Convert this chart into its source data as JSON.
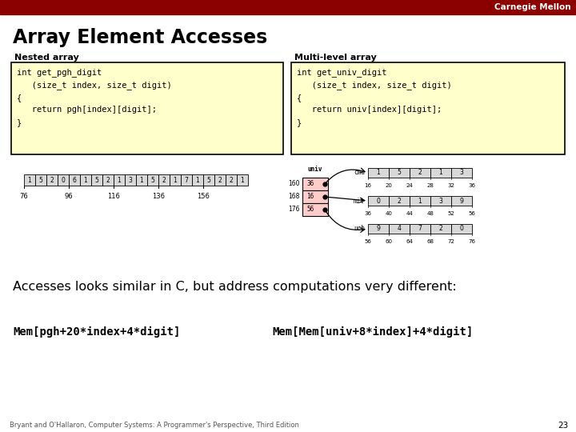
{
  "title": "Array Element Accesses",
  "bg_color": "#ffffff",
  "header_bar_color": "#8b0000",
  "header_text": "Carnegie Mellon",
  "header_text_color": "#ffffff",
  "slide_title_color": "#000000",
  "nested_label": "Nested array",
  "multilevel_label": "Multi-level array",
  "nested_code": "int get_pgh_digit\n   (size_t index, size_t digit)\n{\n   return pgh[index][digit];\n}",
  "multilevel_code": "int get_univ_digit\n   (size_t index, size_t digit)\n{\n   return univ[index][digit];\n}",
  "code_box_bg": "#ffffcc",
  "code_box_border": "#000000",
  "nested_array_values": [
    1,
    5,
    2,
    0,
    6,
    1,
    5,
    2,
    1,
    3,
    1,
    5,
    2,
    1,
    7,
    1,
    5,
    2,
    2,
    1
  ],
  "nested_array_addresses": [
    "76",
    "96",
    "116",
    "136",
    "156"
  ],
  "multilevel_pointer_label": "univ",
  "multilevel_pointer_values": [
    "36",
    "16",
    "56"
  ],
  "multilevel_pointer_addresses": [
    "160",
    "168",
    "176"
  ],
  "multilevel_pointer_bg": "#ffcccc",
  "cmu_row_label": "cmu",
  "cmu_row_values": [
    1,
    5,
    2,
    1,
    3
  ],
  "cmu_row_addresses": [
    "16",
    "20",
    "24",
    "28",
    "32",
    "36"
  ],
  "mit_row_label": "mit",
  "mit_row_values": [
    0,
    2,
    1,
    3,
    9
  ],
  "mit_row_addresses": [
    "36",
    "40",
    "44",
    "48",
    "52",
    "56"
  ],
  "ucb_row_label": "ucb",
  "ucb_row_values": [
    9,
    4,
    7,
    2,
    0
  ],
  "ucb_row_addresses": [
    "56",
    "60",
    "64",
    "68",
    "72",
    "76"
  ],
  "accesses_text": "Accesses looks similar in C, but address computations very different:",
  "mem_pgh": "Mem[pgh+20*index+4*digit]",
  "mem_univ": "Mem[Mem[univ+8*index]+4*digit]",
  "footer_text": "Bryant and O'Hallaron, Computer Systems: A Programmer's Perspective, Third Edition",
  "page_number": "23",
  "array_cell_bg": "#d8d8d8"
}
